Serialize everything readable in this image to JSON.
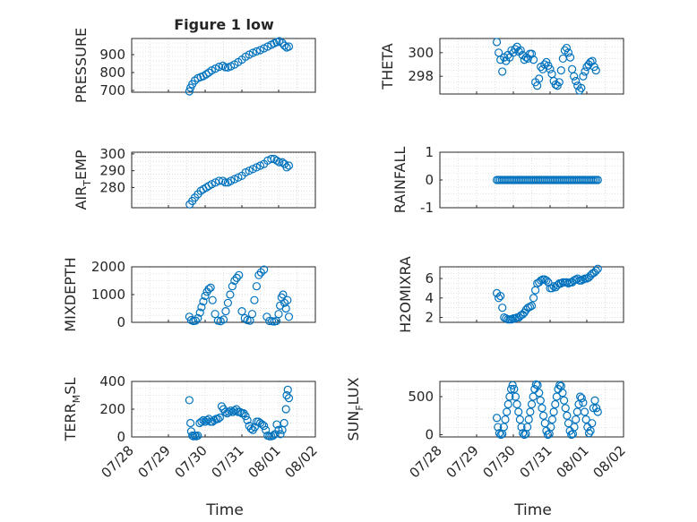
{
  "figure": {
    "background": "#ffffff",
    "marker_color": "#0072bd",
    "axis_color": "#262626",
    "grid_color": "#d9d9d9"
  },
  "chart_data": [
    {
      "type": "scatter",
      "title": "Figure 1 low",
      "ylabel": "PRESSURE",
      "ylim": [
        690,
        990
      ],
      "yticks": [
        700,
        800,
        900
      ],
      "xlim": [
        0,
        5
      ],
      "grid": "dotted",
      "marker": "open-circle",
      "x": [
        1.57,
        1.6,
        1.65,
        1.72,
        1.8,
        1.88,
        1.95,
        2.03,
        2.1,
        2.18,
        2.28,
        2.38,
        2.48,
        2.55,
        2.62,
        2.7,
        2.8,
        2.9,
        3.0,
        3.1,
        3.2,
        3.3,
        3.4,
        3.5,
        3.6,
        3.7,
        3.8,
        3.88,
        3.95,
        4.02,
        4.1,
        4.16,
        4.22,
        4.28
      ],
      "y": [
        695,
        715,
        735,
        755,
        768,
        775,
        780,
        790,
        800,
        812,
        822,
        832,
        838,
        830,
        828,
        835,
        845,
        858,
        872,
        888,
        900,
        910,
        918,
        925,
        935,
        945,
        955,
        963,
        970,
        975,
        965,
        950,
        940,
        945
      ]
    },
    {
      "type": "scatter",
      "title": "",
      "ylabel": "THETA",
      "ylim": [
        296.5,
        301.2
      ],
      "yticks": [
        298,
        300
      ],
      "xlim": [
        0,
        5
      ],
      "grid": "dotted",
      "marker": "open-circle",
      "x": [
        1.55,
        1.6,
        1.65,
        1.7,
        1.75,
        1.8,
        1.85,
        1.9,
        1.95,
        2.0,
        2.05,
        2.1,
        2.15,
        2.2,
        2.25,
        2.3,
        2.35,
        2.4,
        2.45,
        2.5,
        2.55,
        2.6,
        2.65,
        2.7,
        2.75,
        2.8,
        2.85,
        2.9,
        2.95,
        3.0,
        3.05,
        3.1,
        3.15,
        3.2,
        3.25,
        3.3,
        3.35,
        3.4,
        3.45,
        3.5,
        3.55,
        3.6,
        3.65,
        3.7,
        3.75,
        3.8,
        3.85,
        3.9,
        3.95,
        4.0,
        4.05,
        4.1,
        4.15,
        4.2,
        4.25
      ],
      "y": [
        300.9,
        300.0,
        299.4,
        298.4,
        299.6,
        299.3,
        299.8,
        299.6,
        300.2,
        300.0,
        300.3,
        300.5,
        300.1,
        300.2,
        299.8,
        299.4,
        299.6,
        299.5,
        299.9,
        299.9,
        299.4,
        297.5,
        297.2,
        297.8,
        298.8,
        298.6,
        299.0,
        299.2,
        298.9,
        298.6,
        298.2,
        297.6,
        297.3,
        297.2,
        297.5,
        298.5,
        299.5,
        300.2,
        300.4,
        300.0,
        299.6,
        298.6,
        298.0,
        297.6,
        297.2,
        296.8,
        297.0,
        298.0,
        298.4,
        298.8,
        299.0,
        299.2,
        299.3,
        298.8,
        298.5
      ]
    },
    {
      "type": "scatter",
      "title": "",
      "ylabel": "AIR_TEMP",
      "ylim": [
        268,
        301
      ],
      "yticks": [
        280,
        290,
        300
      ],
      "xlim": [
        0,
        5
      ],
      "grid": "dotted",
      "marker": "open-circle",
      "x": [
        1.58,
        1.65,
        1.72,
        1.8,
        1.88,
        1.95,
        2.03,
        2.1,
        2.18,
        2.28,
        2.38,
        2.48,
        2.55,
        2.62,
        2.7,
        2.8,
        2.9,
        3.0,
        3.1,
        3.2,
        3.3,
        3.4,
        3.5,
        3.6,
        3.7,
        3.8,
        3.88,
        3.95,
        4.02,
        4.1,
        4.16,
        4.22,
        4.28
      ],
      "y": [
        270,
        272,
        274,
        276,
        278,
        279,
        280,
        281,
        282,
        283,
        284,
        284,
        283,
        283,
        284,
        285,
        286,
        287,
        289,
        290,
        291,
        292,
        293,
        294,
        296,
        297,
        297,
        296,
        295,
        295,
        294,
        292,
        293
      ]
    },
    {
      "type": "scatter",
      "title": "",
      "ylabel": "RAINFALL",
      "ylim": [
        -1,
        1
      ],
      "yticks": [
        -1,
        0,
        1
      ],
      "xlim": [
        0,
        5
      ],
      "grid": "dotted",
      "marker": "open-circle",
      "x_range": [
        1.55,
        4.3
      ],
      "constant_y": 0,
      "n_points": 60
    },
    {
      "type": "scatter",
      "title": "",
      "ylabel": "MIXDEPTH",
      "ylim": [
        0,
        2000
      ],
      "yticks": [
        0,
        1000,
        2000
      ],
      "xlim": [
        0,
        5
      ],
      "grid": "dotted",
      "marker": "open-circle",
      "x": [
        1.57,
        1.62,
        1.68,
        1.74,
        1.8,
        1.86,
        1.9,
        1.95,
        2.0,
        2.05,
        2.1,
        2.15,
        2.2,
        2.27,
        2.35,
        2.42,
        2.5,
        2.56,
        2.62,
        2.68,
        2.74,
        2.8,
        2.86,
        2.92,
        3.0,
        3.08,
        3.15,
        3.22,
        3.28,
        3.34,
        3.4,
        3.46,
        3.52,
        3.6,
        3.68,
        3.75,
        3.82,
        3.88,
        3.94,
        4.0,
        4.04,
        4.08,
        4.12,
        4.16,
        4.2,
        4.24,
        4.28
      ],
      "y": [
        200,
        80,
        50,
        60,
        150,
        350,
        550,
        750,
        950,
        1100,
        1200,
        1250,
        800,
        300,
        60,
        40,
        100,
        400,
        700,
        1000,
        1300,
        1500,
        1600,
        1700,
        400,
        150,
        80,
        60,
        300,
        800,
        1300,
        1700,
        1800,
        1900,
        200,
        50,
        40,
        30,
        50,
        300,
        600,
        900,
        1000,
        700,
        500,
        800,
        200
      ]
    },
    {
      "type": "scatter",
      "title": "",
      "ylabel": "H2OMIXRA",
      "ylim": [
        1.5,
        7.2
      ],
      "yticks": [
        2,
        4,
        6
      ],
      "xlim": [
        0,
        5
      ],
      "grid": "dotted",
      "marker": "open-circle",
      "x": [
        1.55,
        1.6,
        1.65,
        1.7,
        1.75,
        1.8,
        1.85,
        1.9,
        1.95,
        2.0,
        2.05,
        2.1,
        2.15,
        2.2,
        2.25,
        2.3,
        2.35,
        2.4,
        2.45,
        2.5,
        2.55,
        2.6,
        2.65,
        2.7,
        2.75,
        2.8,
        2.85,
        2.9,
        2.95,
        3.0,
        3.05,
        3.1,
        3.15,
        3.2,
        3.25,
        3.3,
        3.35,
        3.4,
        3.45,
        3.5,
        3.55,
        3.6,
        3.65,
        3.7,
        3.75,
        3.8,
        3.85,
        3.9,
        3.95,
        4.0,
        4.05,
        4.1,
        4.15,
        4.2,
        4.25,
        4.3
      ],
      "y": [
        4.5,
        4.0,
        4.2,
        3.0,
        2.0,
        1.9,
        1.8,
        1.8,
        1.8,
        1.9,
        1.9,
        2.0,
        2.0,
        2.2,
        2.3,
        2.5,
        2.8,
        3.0,
        3.1,
        3.2,
        4.0,
        4.8,
        5.5,
        5.6,
        5.8,
        5.9,
        5.9,
        5.8,
        5.6,
        5.0,
        5.0,
        5.2,
        5.1,
        5.3,
        5.5,
        5.5,
        5.6,
        5.6,
        5.6,
        5.5,
        5.6,
        5.6,
        5.8,
        5.9,
        6.0,
        5.8,
        5.8,
        5.9,
        6.0,
        6.0,
        6.1,
        6.3,
        6.5,
        6.6,
        6.8,
        7.0
      ]
    },
    {
      "type": "scatter",
      "title": "",
      "ylabel": "TERR_MSL",
      "ylim": [
        0,
        400
      ],
      "yticks": [
        0,
        200,
        400
      ],
      "xlim": [
        0,
        5
      ],
      "grid": "dotted",
      "marker": "open-circle",
      "x": [
        1.57,
        1.6,
        1.62,
        1.65,
        1.68,
        1.72,
        1.76,
        1.8,
        1.85,
        1.9,
        1.95,
        2.0,
        2.05,
        2.1,
        2.15,
        2.2,
        2.25,
        2.3,
        2.35,
        2.4,
        2.45,
        2.5,
        2.55,
        2.6,
        2.65,
        2.7,
        2.75,
        2.8,
        2.85,
        2.9,
        2.95,
        3.0,
        3.05,
        3.1,
        3.15,
        3.2,
        3.25,
        3.3,
        3.35,
        3.4,
        3.45,
        3.5,
        3.55,
        3.6,
        3.65,
        3.7,
        3.75,
        3.8,
        3.85,
        3.9,
        3.95,
        4.0,
        4.05,
        4.1,
        4.15,
        4.2,
        4.22,
        4.25,
        4.28
      ],
      "y": [
        265,
        100,
        40,
        10,
        5,
        10,
        5,
        10,
        100,
        110,
        120,
        110,
        120,
        130,
        110,
        110,
        120,
        130,
        130,
        140,
        220,
        200,
        180,
        170,
        180,
        190,
        180,
        190,
        200,
        180,
        180,
        170,
        170,
        150,
        120,
        80,
        60,
        50,
        70,
        110,
        110,
        100,
        90,
        80,
        50,
        10,
        5,
        5,
        10,
        20,
        90,
        50,
        20,
        50,
        100,
        200,
        300,
        340,
        280
      ]
    },
    {
      "type": "scatter",
      "title": "",
      "ylabel": "SUN_FLUX",
      "ylim": [
        -30,
        700
      ],
      "yticks": [
        0,
        500
      ],
      "xlim": [
        0,
        5
      ],
      "grid": "dotted",
      "marker": "open-circle",
      "x": [
        1.55,
        1.58,
        1.62,
        1.66,
        1.7,
        1.74,
        1.78,
        1.82,
        1.86,
        1.9,
        1.94,
        1.98,
        2.02,
        2.06,
        2.1,
        2.14,
        2.18,
        2.22,
        2.26,
        2.3,
        2.34,
        2.38,
        2.42,
        2.46,
        2.5,
        2.54,
        2.58,
        2.62,
        2.66,
        2.7,
        2.74,
        2.78,
        2.82,
        2.86,
        2.9,
        2.94,
        2.98,
        3.02,
        3.06,
        3.1,
        3.14,
        3.18,
        3.22,
        3.26,
        3.3,
        3.34,
        3.38,
        3.42,
        3.46,
        3.5,
        3.54,
        3.58,
        3.62,
        3.66,
        3.7,
        3.74,
        3.78,
        3.82,
        3.86,
        3.9,
        3.94,
        3.98,
        4.02,
        4.06,
        4.1,
        4.14,
        4.18,
        4.22,
        4.26,
        4.3
      ],
      "y": [
        220,
        100,
        20,
        0,
        10,
        100,
        200,
        300,
        400,
        500,
        600,
        650,
        600,
        500,
        400,
        300,
        200,
        100,
        20,
        0,
        10,
        100,
        200,
        300,
        400,
        500,
        600,
        660,
        650,
        550,
        450,
        350,
        250,
        150,
        50,
        0,
        10,
        100,
        200,
        300,
        400,
        500,
        600,
        650,
        640,
        550,
        450,
        350,
        250,
        150,
        50,
        0,
        10,
        100,
        200,
        300,
        400,
        500,
        480,
        420,
        300,
        200,
        100,
        20,
        50,
        150,
        350,
        450,
        350,
        300
      ]
    }
  ],
  "axes": {
    "x_tick_labels": [
      "07/28",
      "07/29",
      "07/30",
      "07/31",
      "08/01",
      "08/02"
    ],
    "x_label": "Time"
  }
}
